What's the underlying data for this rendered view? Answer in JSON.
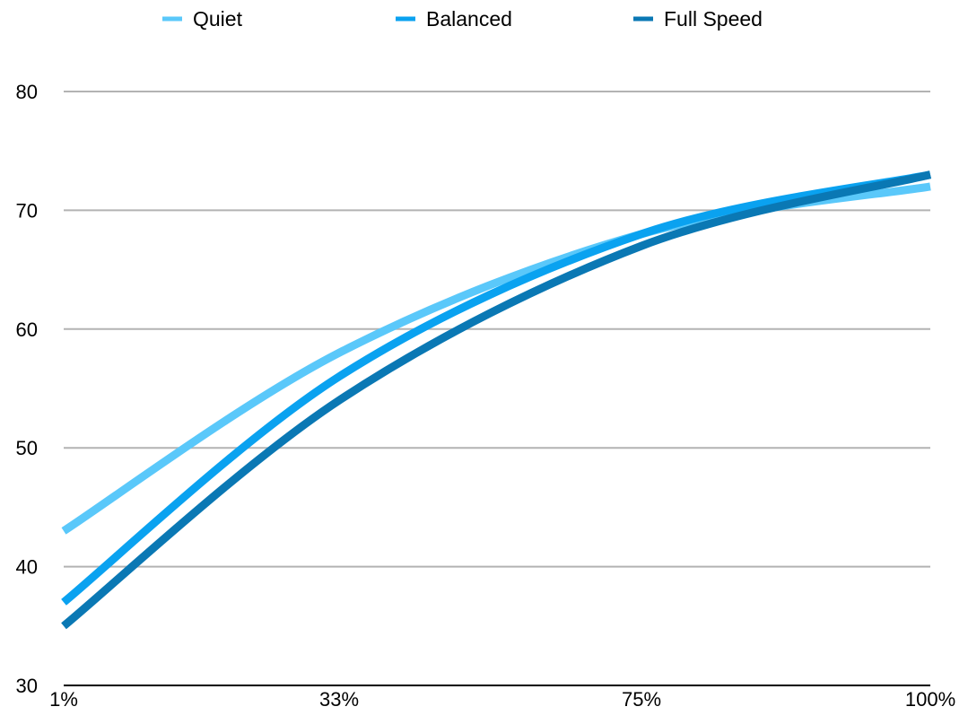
{
  "chart_data": {
    "type": "line",
    "title": "",
    "xlabel": "",
    "ylabel": "",
    "categories": [
      "1%",
      "33%",
      "75%",
      "100%"
    ],
    "x": [
      1,
      33,
      75,
      100
    ],
    "ylim": [
      30,
      80
    ],
    "yticks": [
      30,
      40,
      50,
      60,
      70,
      80
    ],
    "grid": true,
    "legend_position": "top",
    "series": [
      {
        "name": "Quiet",
        "color": "#5ac8fa",
        "values": [
          43,
          58,
          68,
          72
        ]
      },
      {
        "name": "Balanced",
        "color": "#0aa2f0",
        "values": [
          37,
          56,
          68,
          73
        ]
      },
      {
        "name": "Full Speed",
        "color": "#0a78b4",
        "values": [
          35,
          54,
          67,
          73
        ]
      }
    ]
  }
}
